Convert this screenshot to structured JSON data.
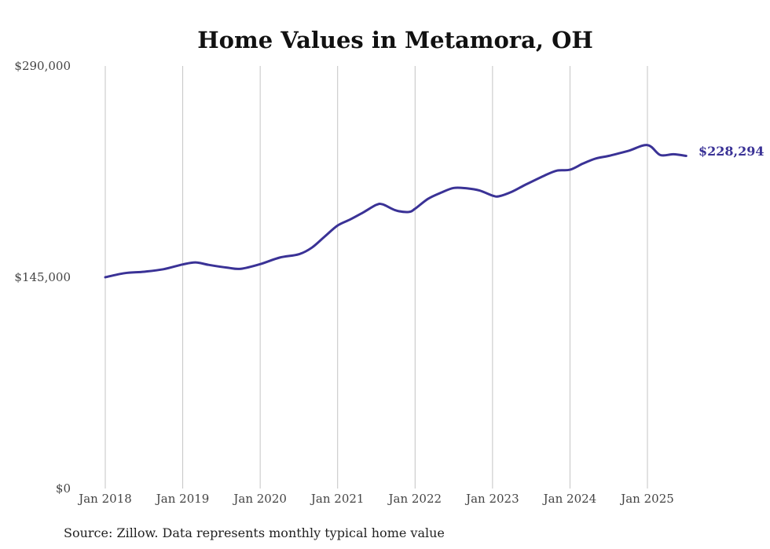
{
  "chart_data": {
    "type": "line",
    "title": "Home Values in Metamora, OH",
    "xlabel": "",
    "ylabel": "",
    "ylim": [
      0,
      290000
    ],
    "xlim": [
      "2018-01",
      "2025-07"
    ],
    "grid": "vertical",
    "legend": "none",
    "y_ticks": [
      "$0",
      "$145,000",
      "$290,000"
    ],
    "y_tick_values": [
      0,
      145000,
      290000
    ],
    "x_ticks": [
      "Jan 2018",
      "Jan 2019",
      "Jan 2020",
      "Jan 2021",
      "Jan 2022",
      "Jan 2023",
      "Jan 2024",
      "Jan 2025"
    ],
    "x_tick_values": [
      "2018-01",
      "2019-01",
      "2020-01",
      "2021-01",
      "2022-01",
      "2023-01",
      "2024-01",
      "2025-01"
    ],
    "end_label": "$228,294",
    "source": "Source: Zillow. Data represents monthly typical home value",
    "color": "#3a3296",
    "series": [
      {
        "x": [
          "2018-01",
          "2018-04",
          "2018-07",
          "2018-10",
          "2019-01",
          "2019-03",
          "2019-05",
          "2019-08",
          "2019-10",
          "2020-01",
          "2020-04",
          "2020-07",
          "2020-09",
          "2020-11",
          "2021-01",
          "2021-03",
          "2021-05",
          "2021-07",
          "2021-08",
          "2021-10",
          "2021-12",
          "2022-01",
          "2022-03",
          "2022-05",
          "2022-07",
          "2022-09",
          "2022-11",
          "2023-01",
          "2023-02",
          "2023-04",
          "2023-06",
          "2023-09",
          "2023-11",
          "2024-01",
          "2024-03",
          "2024-05",
          "2024-07",
          "2024-10",
          "2025-01",
          "2025-03",
          "2025-05",
          "2025-07"
        ],
        "y": [
          145000,
          147800,
          148800,
          150500,
          153800,
          155200,
          153500,
          151500,
          150800,
          154000,
          158500,
          160800,
          165300,
          173000,
          180500,
          184800,
          189600,
          194700,
          195000,
          190900,
          189800,
          192000,
          198800,
          203000,
          206300,
          206000,
          204500,
          201000,
          200600,
          203700,
          208300,
          214700,
          218200,
          218800,
          223000,
          226500,
          228300,
          231700,
          235700,
          228900,
          229400,
          228294
        ]
      }
    ]
  }
}
